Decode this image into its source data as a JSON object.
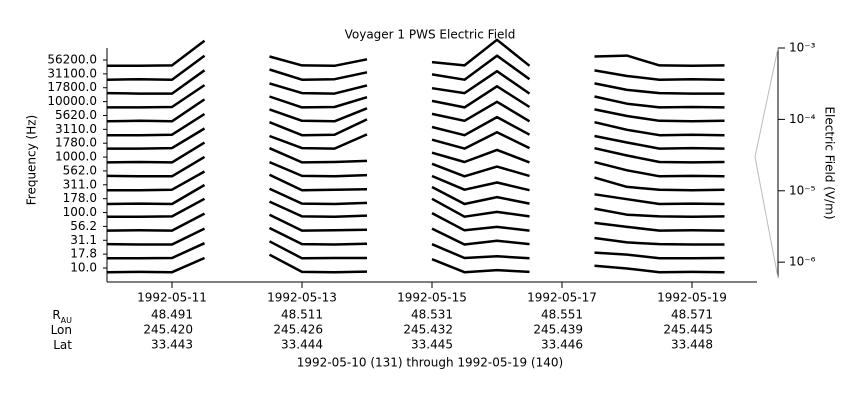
{
  "chart_data": {
    "type": "channel-lines",
    "title": "Voyager 1 PWS Electric Field",
    "ylabel": "Frequency (Hz)",
    "y2label": "Electric Field (V/m)",
    "xlabel": "1992-05-10 (131) through 1992-05-19 (140)",
    "color": "#000000",
    "categories": [
      "10.0",
      "17.8",
      "31.1",
      "56.2",
      "100.0",
      "178.0",
      "311.0",
      "562.0",
      "1000.0",
      "1780.0",
      "3110.0",
      "5620.0",
      "10000.0",
      "17800.0",
      "31100.0",
      "56200.0"
    ],
    "x": [
      131,
      131.5,
      132,
      132.5,
      133,
      133.5,
      134,
      134.5,
      135,
      135.5,
      136,
      136.5,
      137,
      137.5,
      138,
      138.5,
      139,
      139.5,
      140,
      140.5,
      141
    ],
    "xlim": [
      131,
      141
    ],
    "xticks": [
      {
        "value": 132,
        "label": "1992-05-11"
      },
      {
        "value": 134,
        "label": "1992-05-13"
      },
      {
        "value": 136,
        "label": "1992-05-15"
      },
      {
        "value": 138,
        "label": "1992-05-17"
      },
      {
        "value": 140,
        "label": "1992-05-19"
      }
    ],
    "y2lim": [
      6e-07,
      0.001
    ],
    "y2ticks": [
      {
        "value": 0.001,
        "label": "10⁻³"
      },
      {
        "value": 0.0001,
        "label": "10⁻⁴"
      },
      {
        "value": 1e-05,
        "label": "10⁻⁵"
      },
      {
        "value": 1e-06,
        "label": "10⁻⁶"
      }
    ],
    "y2log": true,
    "series": [
      {
        "values": [
          1.2e-06,
          1.3e-06,
          1.2e-06,
          4e-05,
          null,
          9e-05,
          1.3e-06,
          1.2e-06,
          1.4e-06,
          null,
          3e-05,
          1.2e-06,
          2e-06,
          1.3e-06,
          null,
          6e-06,
          3e-06,
          1.2e-06,
          1.3e-06,
          1.2e-06,
          null
        ]
      },
      {
        "values": [
          1.2e-06,
          1.2e-06,
          1.3e-06,
          5e-05,
          null,
          8e-05,
          1.2e-06,
          1.3e-06,
          1.3e-06,
          null,
          4e-05,
          1.3e-06,
          2e-06,
          1.2e-06,
          null,
          5e-06,
          3e-06,
          1.2e-06,
          1.2e-06,
          1.3e-06,
          null
        ]
      },
      {
        "values": [
          1.3e-06,
          1.2e-06,
          1.2e-06,
          6e-05,
          null,
          7e-05,
          1.3e-06,
          1.2e-06,
          1.4e-06,
          null,
          6e-05,
          1.2e-06,
          3e-06,
          1.3e-06,
          null,
          6e-06,
          2e-06,
          1.3e-06,
          1.2e-06,
          1.2e-06,
          null
        ]
      },
      {
        "values": [
          1.2e-06,
          1.3e-06,
          1.2e-06,
          8e-05,
          null,
          6e-05,
          1.2e-06,
          1.3e-06,
          1.5e-06,
          null,
          9e-05,
          1.3e-06,
          3e-06,
          1.2e-06,
          null,
          8e-06,
          3e-06,
          1.2e-06,
          1.3e-06,
          1.2e-06,
          null
        ]
      },
      {
        "values": [
          1.2e-06,
          1.2e-06,
          1.3e-06,
          0.0001,
          null,
          5e-05,
          1.3e-06,
          1.2e-06,
          1.6e-06,
          null,
          0.0001,
          1.2e-06,
          4e-06,
          1.3e-06,
          null,
          9e-06,
          2e-06,
          1.3e-06,
          1.2e-06,
          1.3e-06,
          null
        ]
      },
      {
        "values": [
          9e-07,
          1e-06,
          9e-07,
          0.0001,
          null,
          4e-05,
          1e-06,
          9e-07,
          1.2e-06,
          null,
          6e-05,
          9e-07,
          5e-06,
          1e-06,
          null,
          1e-05,
          3e-06,
          9e-07,
          1e-06,
          9e-07,
          null
        ]
      },
      {
        "values": [
          9e-07,
          9e-07,
          1e-06,
          9e-05,
          null,
          4e-05,
          9e-07,
          1e-06,
          1.1e-06,
          null,
          3e-05,
          1e-06,
          6e-06,
          9e-07,
          null,
          2e-05,
          2e-06,
          1e-06,
          9e-07,
          1e-06,
          null
        ]
      },
      {
        "values": [
          1e-06,
          9e-07,
          9e-07,
          0.00011,
          null,
          3e-05,
          1e-06,
          9e-07,
          1.2e-06,
          null,
          2e-05,
          9e-07,
          1e-05,
          1e-06,
          null,
          3e-05,
          4e-06,
          9e-07,
          1e-06,
          9e-07,
          null
        ]
      },
      {
        "values": [
          9e-07,
          1e-06,
          9e-07,
          0.00012,
          null,
          3e-05,
          9e-07,
          1e-06,
          1.3e-06,
          null,
          1e-05,
          1e-06,
          2e-05,
          9e-07,
          null,
          3e-05,
          5e-06,
          1e-06,
          9e-07,
          1e-06,
          null
        ]
      },
      {
        "values": [
          9e-07,
          9e-07,
          1e-06,
          0.00013,
          null,
          2e-05,
          1e-06,
          9e-07,
          3e-05,
          null,
          8e-06,
          9e-07,
          5e-05,
          1e-06,
          null,
          2e-05,
          4e-06,
          9e-07,
          1e-06,
          9e-07,
          null
        ]
      },
      {
        "values": [
          8e-07,
          8e-07,
          9e-07,
          0.00015,
          null,
          2e-05,
          8e-07,
          9e-07,
          4e-05,
          null,
          6e-06,
          8e-07,
          7e-05,
          9e-07,
          null,
          2e-05,
          3e-06,
          8e-07,
          9e-07,
          8e-07,
          null
        ]
      },
      {
        "values": [
          8e-07,
          9e-07,
          8e-07,
          0.00018,
          null,
          1.5e-05,
          9e-07,
          8e-07,
          2e-05,
          null,
          5e-06,
          9e-07,
          0.0001,
          8e-07,
          null,
          1.5e-05,
          3e-06,
          9e-07,
          8e-07,
          9e-07,
          null
        ]
      },
      {
        "values": [
          8e-07,
          8e-07,
          9e-07,
          0.0002,
          null,
          1.2e-05,
          8e-07,
          9e-07,
          1e-05,
          null,
          4e-06,
          8e-07,
          0.00015,
          9e-07,
          null,
          1.2e-05,
          2e-06,
          8e-07,
          9e-07,
          8e-07,
          null
        ]
      },
      {
        "values": [
          9e-07,
          8e-07,
          8e-07,
          0.00025,
          null,
          1e-05,
          9e-07,
          8e-07,
          6e-06,
          null,
          3e-06,
          9e-07,
          0.0002,
          8e-07,
          null,
          1e-05,
          2e-06,
          9e-07,
          8e-07,
          8e-07,
          null
        ]
      },
      {
        "values": [
          8e-07,
          9e-07,
          8e-07,
          0.0003,
          null,
          1e-05,
          8e-07,
          9e-07,
          5e-06,
          null,
          3e-06,
          8e-07,
          0.0003,
          9e-07,
          null,
          8e-06,
          2e-06,
          8e-07,
          9e-07,
          8e-07,
          null
        ]
      },
      {
        "values": [
          8e-07,
          8e-07,
          9e-07,
          0.0004,
          null,
          8e-06,
          9e-07,
          8e-07,
          4e-06,
          null,
          2e-06,
          9e-07,
          0.0005,
          8e-07,
          null,
          8e-06,
          1e-05,
          9e-07,
          8e-07,
          9e-07,
          null
        ]
      }
    ],
    "ephemeris": [
      {
        "label": "R",
        "subscript": "AU",
        "values": [
          "48.491",
          "48.511",
          "48.531",
          "48.551",
          "48.571"
        ]
      },
      {
        "label": "Lon",
        "values": [
          "245.420",
          "245.426",
          "245.432",
          "245.439",
          "245.445"
        ]
      },
      {
        "label": "Lat",
        "values": [
          "33.443",
          "33.444",
          "33.445",
          "33.446",
          "33.448"
        ]
      }
    ]
  }
}
